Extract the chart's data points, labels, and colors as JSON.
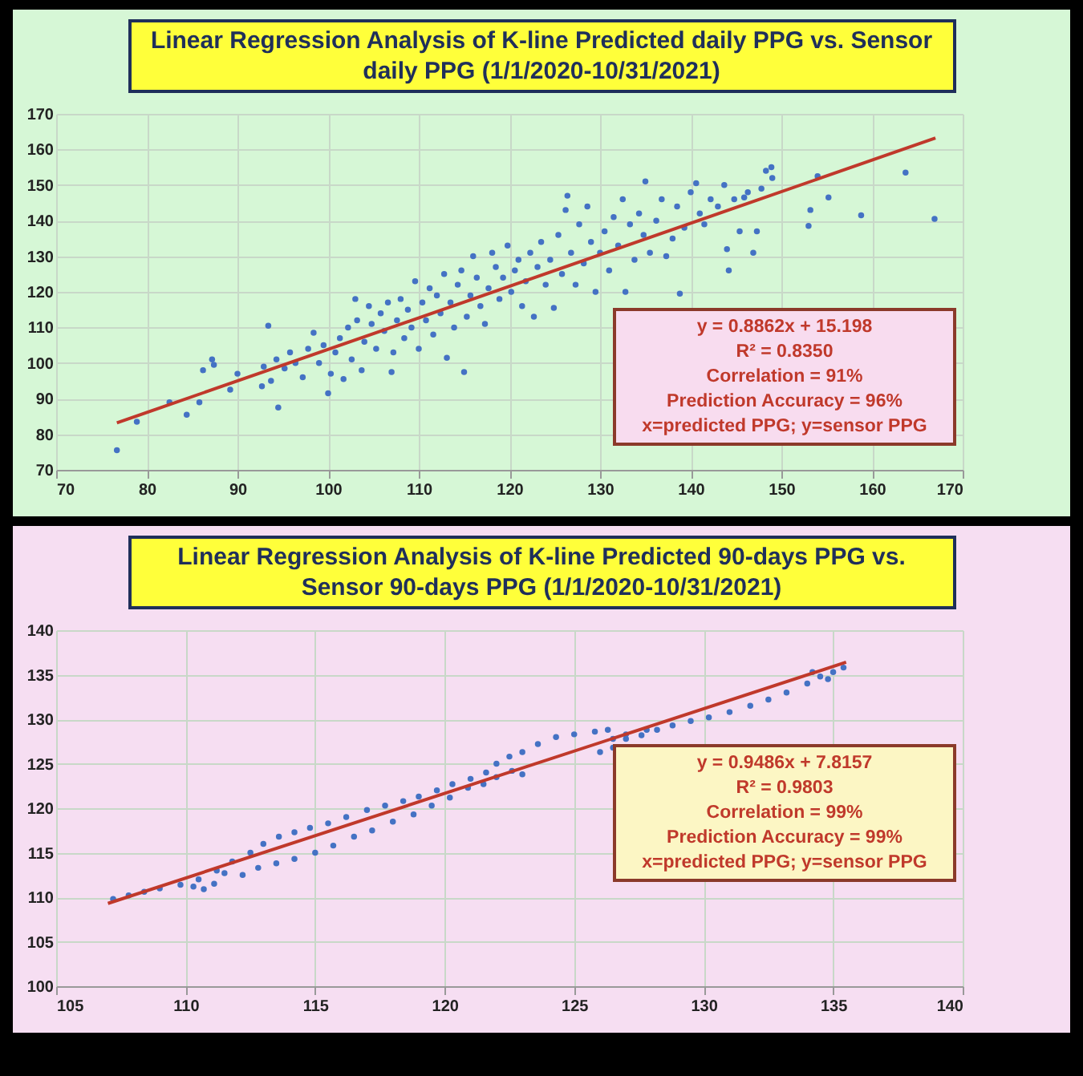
{
  "chart_data": [
    {
      "type": "scatter",
      "title": "Linear Regression Analysis of K-line Predicted daily PPG vs. Sensor daily PPG (1/1/2020-10/31/2021)",
      "xlim": [
        70,
        170
      ],
      "xticks": [
        70,
        80,
        90,
        100,
        110,
        120,
        130,
        140,
        150,
        160,
        170
      ],
      "ylim": [
        70,
        170
      ],
      "yticks": [
        70,
        80,
        90,
        100,
        110,
        120,
        130,
        140,
        150,
        160,
        170
      ],
      "grid": true,
      "annotations": [
        "y = 0.8862x + 15.198",
        "R² = 0.8350",
        "Correlation = 91%",
        "Prediction Accuracy = 96%",
        "x=predicted PPG;  y=sensor PPG"
      ],
      "series": [
        {
          "marker": "circle",
          "color": "#4472c4",
          "x": [
            76.7,
            78.9,
            82.5,
            84.4,
            85.8,
            86.2,
            87.2,
            87.4,
            89.2,
            90,
            92.7,
            92.9,
            93.4,
            93.7,
            94.5,
            94.3,
            95.2,
            95.8,
            96.4,
            97.2,
            97.8,
            98.4,
            99,
            99.5,
            100,
            100.3,
            100.8,
            101.3,
            101.7,
            102.2,
            102.6,
            103,
            103.2,
            103.7,
            104,
            104.5,
            104.8,
            105.3,
            105.8,
            106.2,
            106.6,
            107,
            107.2,
            107.6,
            108,
            108.4,
            108.8,
            109.2,
            109.6,
            110,
            110.4,
            110.8,
            111.2,
            111.6,
            112,
            112.4,
            112.8,
            113.1,
            113.5,
            113.9,
            114.3,
            114.7,
            115,
            115.3,
            115.7,
            116,
            116.4,
            116.8,
            117.3,
            117.7,
            118.1,
            118.5,
            118.9,
            119.3,
            119.8,
            120.2,
            120.6,
            121,
            121.4,
            121.8,
            122.3,
            122.7,
            123.1,
            123.5,
            124,
            124.5,
            124.9,
            125.4,
            125.8,
            126.2,
            126.4,
            126.8,
            127.3,
            127.7,
            128.2,
            128.6,
            129,
            129.5,
            130,
            130.5,
            131,
            131.5,
            132,
            132.5,
            132.8,
            133.3,
            133.8,
            134.3,
            134.8,
            135,
            135.5,
            136.2,
            136.8,
            137.3,
            138,
            138.5,
            138.8,
            139.3,
            140,
            140.6,
            141,
            141.5,
            142.2,
            143,
            143.7,
            144,
            144.2,
            144.8,
            145.4,
            145.9,
            146.3,
            146.9,
            147.3,
            147.8,
            148.3,
            148.9,
            149,
            153,
            153.2,
            154,
            155.2,
            158.8,
            163.7,
            166.9
          ],
          "values": [
            75.5,
            83.5,
            89,
            85.5,
            89,
            98,
            101,
            99.5,
            92.5,
            97,
            93.5,
            99,
            110.5,
            95,
            87.5,
            101,
            98.5,
            103,
            100,
            96,
            104,
            108.5,
            100,
            105,
            91.5,
            97,
            103,
            107,
            95.5,
            110,
            101,
            118,
            112,
            98,
            106,
            116,
            111,
            104,
            114,
            109,
            117,
            97.5,
            103,
            112,
            118,
            107,
            115,
            110,
            123,
            104,
            117,
            112,
            121,
            108,
            119,
            114,
            125,
            101.5,
            117,
            110,
            122,
            126,
            97.5,
            113,
            119,
            130,
            124,
            116,
            111,
            121,
            131,
            127,
            118,
            124,
            133,
            120,
            126,
            129,
            116,
            123,
            131,
            113,
            127,
            134,
            122,
            129,
            115.5,
            136,
            125,
            143,
            147,
            131,
            122,
            139,
            128,
            144,
            134,
            120,
            131,
            137,
            126,
            141,
            133,
            146,
            120,
            139,
            129,
            142,
            136,
            151,
            131,
            140,
            146,
            130,
            135,
            144,
            119.5,
            138,
            148,
            150.5,
            142,
            139,
            146,
            144,
            150,
            132,
            126,
            146,
            137,
            146.5,
            148,
            131,
            137,
            149,
            154,
            155,
            152,
            138.5,
            143,
            152.5,
            146.5,
            141.5,
            153.5,
            140.5
          ]
        },
        {
          "type": "line",
          "color": "#c0392b",
          "x": [
            76.7,
            167
          ],
          "values": [
            83.2,
            163.2
          ]
        }
      ]
    },
    {
      "type": "scatter",
      "title": "Linear Regression Analysis of K-line Predicted 90-days PPG vs. Sensor 90-days PPG (1/1/2020-10/31/2021)",
      "xlim": [
        105,
        140
      ],
      "xticks": [
        105,
        110,
        115,
        120,
        125,
        130,
        135,
        140
      ],
      "ylim": [
        100,
        140
      ],
      "yticks": [
        100,
        105,
        110,
        115,
        120,
        125,
        130,
        135,
        140
      ],
      "grid": true,
      "annotations": [
        "y = 0.9486x + 7.8157",
        "R² = 0.9803",
        "Correlation = 99%",
        "Prediction Accuracy = 99%",
        "x=predicted PPG;  y=sensor PPG"
      ],
      "series": [
        {
          "marker": "circle",
          "color": "#4472c4",
          "x": [
            107.2,
            107.8,
            108.4,
            109,
            109.8,
            110.5,
            111.2,
            111.8,
            112.5,
            113,
            113.6,
            114.2,
            114.8,
            115.5,
            116.2,
            117,
            117.7,
            118.4,
            119,
            119.7,
            120.3,
            121,
            121.6,
            122,
            122.5,
            123,
            123.6,
            124.3,
            125,
            125.8,
            126.3,
            110.3,
            110.7,
            111.1,
            111.5,
            112.2,
            112.8,
            113.5,
            114.2,
            115,
            115.7,
            116.5,
            117.2,
            118,
            118.8,
            119.5,
            120.2,
            120.9,
            121.5,
            122,
            122.6,
            123,
            126,
            126.5,
            127,
            127.6,
            128.2,
            128.8,
            129.5,
            130.2,
            131,
            131.8,
            132.5,
            133.2,
            134,
            134.5,
            135,
            135.4,
            134.2,
            134.8,
            126.5,
            127,
            127.8
          ],
          "values": [
            109.8,
            110.2,
            110.6,
            111,
            111.4,
            112,
            113,
            114,
            115,
            116,
            116.8,
            117.3,
            117.8,
            118.3,
            119,
            119.8,
            120.3,
            120.8,
            121.3,
            122,
            122.7,
            123.3,
            124,
            125,
            125.8,
            126.3,
            127.2,
            128,
            128.3,
            128.6,
            128.8,
            111.2,
            110.9,
            111.5,
            112.7,
            112.5,
            113.3,
            113.8,
            114.3,
            115,
            115.8,
            116.8,
            117.5,
            118.5,
            119.3,
            120.3,
            121.2,
            122.3,
            122.7,
            123.5,
            124.2,
            123.8,
            126.3,
            126.8,
            127.8,
            128.2,
            128.8,
            129.3,
            129.8,
            130.2,
            130.8,
            131.5,
            132.2,
            133,
            134,
            134.8,
            135.3,
            135.8,
            135.3,
            134.5,
            127.8,
            128.3,
            128.8
          ]
        },
        {
          "type": "line",
          "color": "#c0392b",
          "x": [
            107,
            135.5
          ],
          "values": [
            109.3,
            136.4
          ]
        }
      ]
    }
  ]
}
